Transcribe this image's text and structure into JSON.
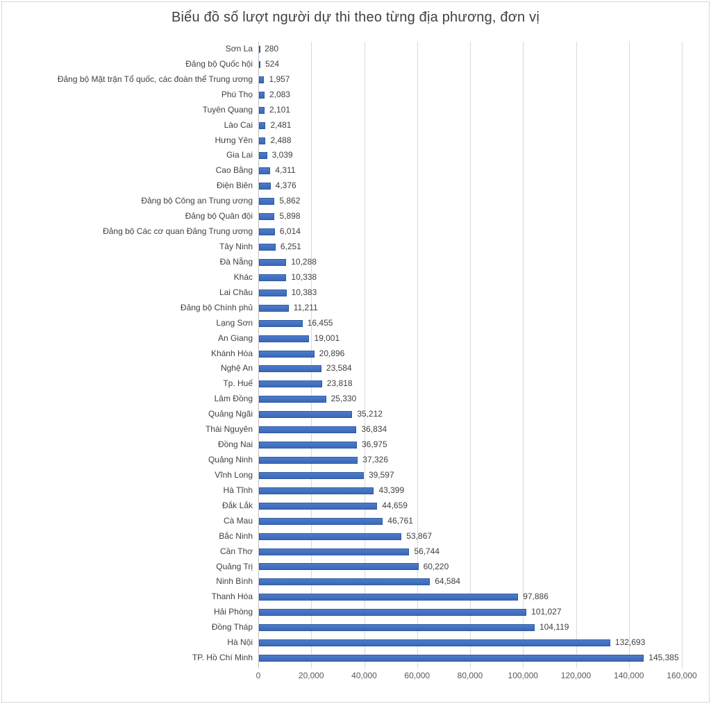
{
  "chart_data": {
    "type": "bar",
    "orientation": "horizontal",
    "title": "Biểu đồ số lượt người dự thi theo từng địa phương, đơn vị",
    "categories": [
      "Sơn La",
      "Đảng bộ Quốc hội",
      "Đảng bộ Mặt trận Tổ quốc, các đoàn thể Trung ương",
      "Phú Thọ",
      "Tuyên Quang",
      "Lào Cai",
      "Hưng Yên",
      "Gia Lai",
      "Cao Bằng",
      "Điện Biên",
      "Đảng bộ Công an Trung ương",
      "Đảng bộ Quân đội",
      "Đảng bộ Các cơ quan Đảng Trung ương",
      "Tây Ninh",
      "Đà Nẵng",
      "Khác",
      "Lai Châu",
      "Đảng bộ Chính phủ",
      "Lạng Sơn",
      "An Giang",
      "Khánh Hòa",
      "Nghệ An",
      "Tp. Huế",
      "Lâm Đồng",
      "Quảng Ngãi",
      "Thái Nguyên",
      "Đồng Nai",
      "Quảng Ninh",
      "Vĩnh Long",
      "Hà Tĩnh",
      "Đắk Lắk",
      "Cà Mau",
      "Bắc Ninh",
      "Cần Thơ",
      "Quảng Trị",
      "Ninh Bình",
      "Thanh Hóa",
      "Hải Phòng",
      "Đồng Tháp",
      "Hà Nội",
      "TP. Hồ Chí Minh"
    ],
    "values": [
      280,
      524,
      1957,
      2083,
      2101,
      2481,
      2488,
      3039,
      4311,
      4376,
      5862,
      5898,
      6014,
      6251,
      10288,
      10338,
      10383,
      11211,
      16455,
      19001,
      20896,
      23584,
      23818,
      25330,
      35212,
      36834,
      36975,
      37326,
      39597,
      43399,
      44659,
      46761,
      53867,
      56744,
      60220,
      64584,
      97886,
      101027,
      104119,
      132693,
      145385
    ],
    "value_labels": [
      "280",
      "524",
      "1,957",
      "2,083",
      "2,101",
      "2,481",
      "2,488",
      "3,039",
      "4,311",
      "4,376",
      "5,862",
      "5,898",
      "6,014",
      "6,251",
      "10,288",
      "10,338",
      "10,383",
      "11,211",
      "16,455",
      "19,001",
      "20,896",
      "23,584",
      "23,818",
      "25,330",
      "35,212",
      "36,834",
      "36,975",
      "37,326",
      "39,597",
      "43,399",
      "44,659",
      "46,761",
      "53,867",
      "56,744",
      "60,220",
      "64,584",
      "97,886",
      "101,027",
      "104,119",
      "132,693",
      "145,385"
    ],
    "x_ticks": [
      {
        "value": 0,
        "label": "0"
      },
      {
        "value": 20000,
        "label": "20,000"
      },
      {
        "value": 40000,
        "label": "40,000"
      },
      {
        "value": 60000,
        "label": "60,000"
      },
      {
        "value": 80000,
        "label": "80,000"
      },
      {
        "value": 100000,
        "label": "100,000"
      },
      {
        "value": 120000,
        "label": "120,000"
      },
      {
        "value": 140000,
        "label": "140,000"
      },
      {
        "value": 160000,
        "label": "160,000"
      }
    ],
    "xlim": [
      0,
      160000
    ],
    "xlabel": "",
    "ylabel": "",
    "grid": "vertical",
    "legend": "none"
  },
  "colors": {
    "bar_fill": "#4472C4",
    "bar_border": "#2E5A9E",
    "gridline": "#D9D9D9",
    "axis_line": "#BFBFBF",
    "title_text": "#404040",
    "label_text": "#404040",
    "tick_text": "#595959",
    "frame_border": "#D8D8D8",
    "background": "#FFFFFF"
  }
}
